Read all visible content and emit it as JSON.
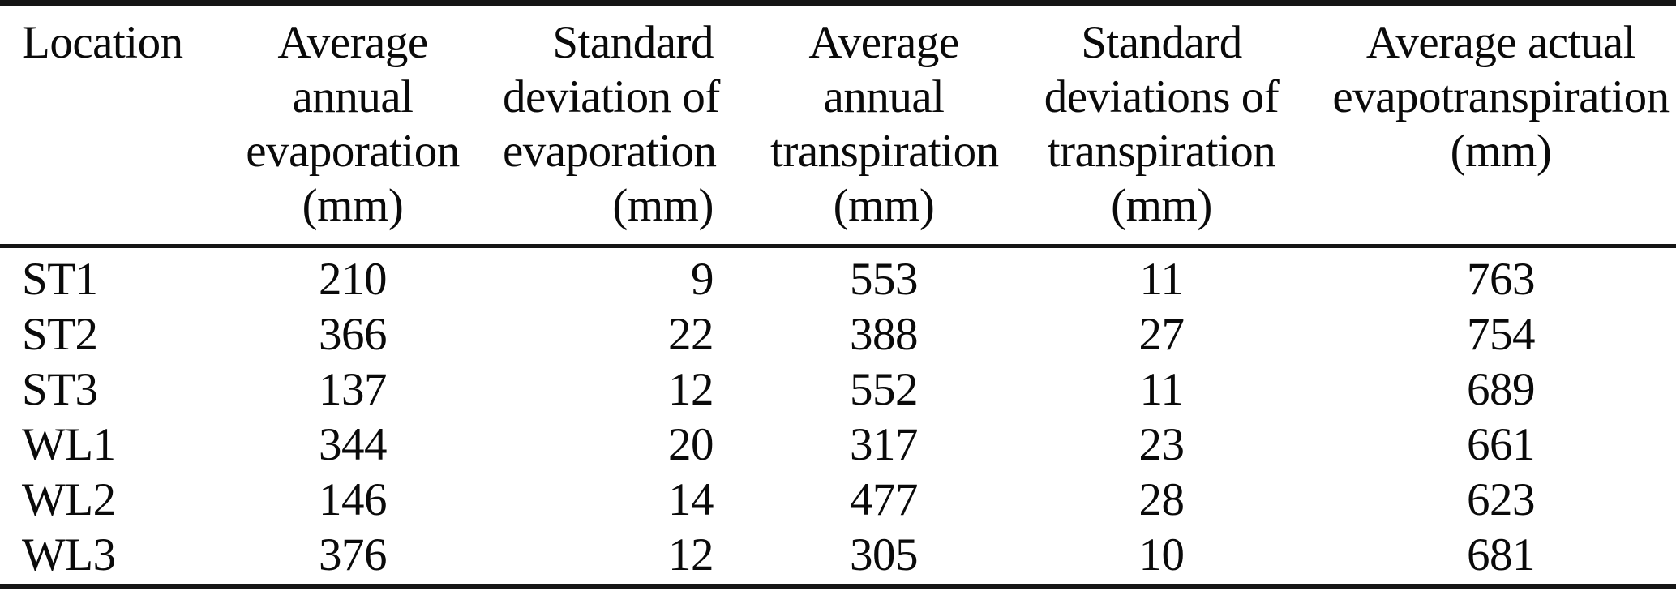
{
  "colors": {
    "text": "#0a0a0a",
    "background": "#ffffff",
    "rule": "#151515"
  },
  "table": {
    "columns": [
      {
        "id": "location",
        "label": "Location",
        "align": "left"
      },
      {
        "id": "avg_annual_evaporation",
        "label": "Average\nannual\nevaporation\n(mm)",
        "align": "center"
      },
      {
        "id": "std_deviation_evaporation",
        "label": "Standard\ndeviation of\nevaporation\n(mm)",
        "align": "right"
      },
      {
        "id": "avg_annual_transpiration",
        "label": "Average\nannual\ntranspiration\n(mm)",
        "align": "center"
      },
      {
        "id": "std_deviations_transpiration",
        "label": "Standard\ndeviations of\ntranspiration\n(mm)",
        "align": "center"
      },
      {
        "id": "avg_actual_evapotranspiration",
        "label": "Average actual\nevapotranspiration\n(mm)",
        "align": "center"
      }
    ],
    "rows": [
      {
        "location": "ST1",
        "values": [
          "210",
          "9",
          "553",
          "11",
          "763"
        ]
      },
      {
        "location": "ST2",
        "values": [
          "366",
          "22",
          "388",
          "27",
          "754"
        ]
      },
      {
        "location": "ST3",
        "values": [
          "137",
          "12",
          "552",
          "11",
          "689"
        ]
      },
      {
        "location": "WL1",
        "values": [
          "344",
          "20",
          "317",
          "23",
          "661"
        ]
      },
      {
        "location": "WL2",
        "values": [
          "146",
          "14",
          "477",
          "28",
          "623"
        ]
      },
      {
        "location": "WL3",
        "values": [
          "376",
          "12",
          "305",
          "10",
          "681"
        ]
      }
    ]
  }
}
